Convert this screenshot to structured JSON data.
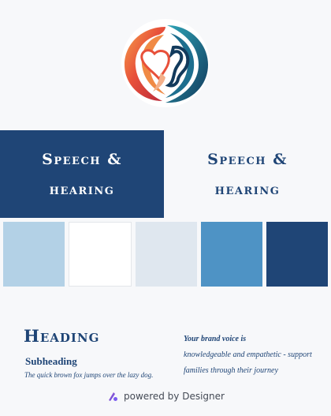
{
  "brand": {
    "name_line1": "Speech &",
    "name_line2": "hearing",
    "logo_icon": "ear-heart-logo"
  },
  "palette": [
    {
      "name": "light-blue",
      "hex": "#b3d1e6"
    },
    {
      "name": "white",
      "hex": "#ffffff"
    },
    {
      "name": "pale-gray-blue",
      "hex": "#dfe7ef"
    },
    {
      "name": "medium-blue",
      "hex": "#4e93c5"
    },
    {
      "name": "navy",
      "hex": "#1f4576"
    }
  ],
  "typography": {
    "heading": "Heading",
    "subheading": "Subheading",
    "pangram": "The quick brown fox jumps over the lazy dog."
  },
  "voice": {
    "lead": "Your brand voice is",
    "line2": "knowledgeable and empathetic - support",
    "line3": "families through their journey"
  },
  "footer": {
    "powered": "powered by Designer",
    "icon": "designer-logo-icon"
  },
  "colors": {
    "accent": "#1f4576",
    "background": "#f7f8fa"
  }
}
